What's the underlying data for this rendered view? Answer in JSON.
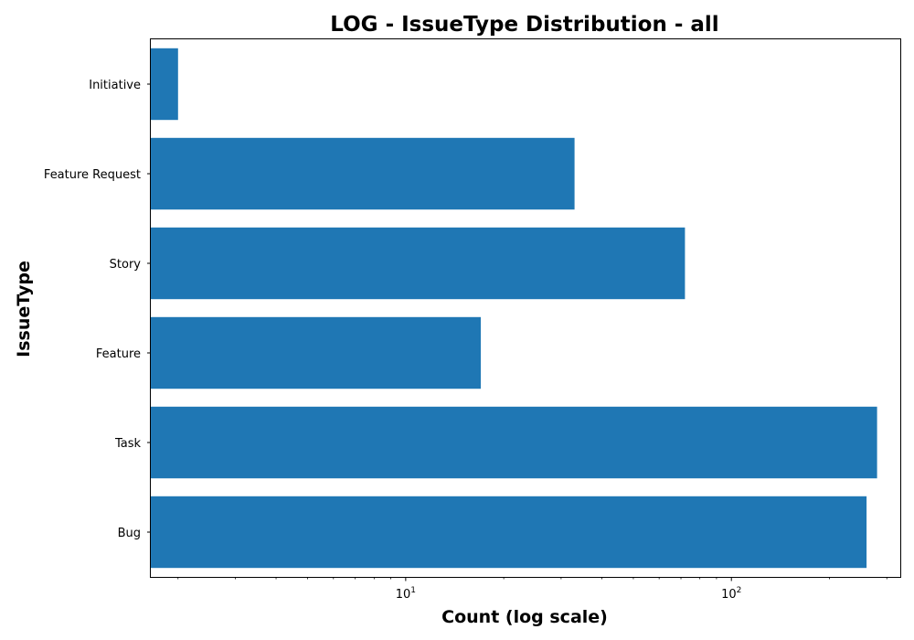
{
  "chart_data": {
    "type": "bar",
    "orientation": "horizontal",
    "title": "LOG - IssueType Distribution - all",
    "xlabel": "Count (log scale)",
    "ylabel": "IssueType",
    "x_scale": "log",
    "xlim": [
      1.65,
      330
    ],
    "x_major_ticks": [
      {
        "value": 10,
        "base": "10",
        "exp": "1"
      },
      {
        "value": 100,
        "base": "10",
        "exp": "2"
      }
    ],
    "categories": [
      "Bug",
      "Task",
      "Feature",
      "Story",
      "Feature Request",
      "Initiative"
    ],
    "values": [
      260,
      280,
      17,
      72,
      33,
      2
    ],
    "bar_color": "#1f77b4",
    "grid": false,
    "legend": "none"
  }
}
